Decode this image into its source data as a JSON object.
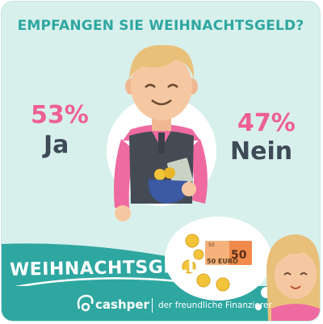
{
  "headline": "EMPFANGEN SIE WEIHNACHTSGELD?",
  "chart_data": {
    "type": "pie",
    "title": "EMPFANGEN SIE WEIHNACHTSGELD?",
    "categories": [
      "Ja",
      "Nein"
    ],
    "values": [
      53,
      47
    ],
    "value_labels": [
      "53%",
      "47%"
    ]
  },
  "banner": {
    "title": "WEIHNACHTSGELD",
    "brand": "cashper",
    "tagline": "der freundliche Finanzierer"
  },
  "bill": {
    "top_value": "50",
    "big_value": "50",
    "currency_label": "50 EURO"
  },
  "colors": {
    "background": "#d8f0ec",
    "teal": "#2fa7a1",
    "pink": "#ee5f93",
    "dark": "#3e4a57"
  }
}
